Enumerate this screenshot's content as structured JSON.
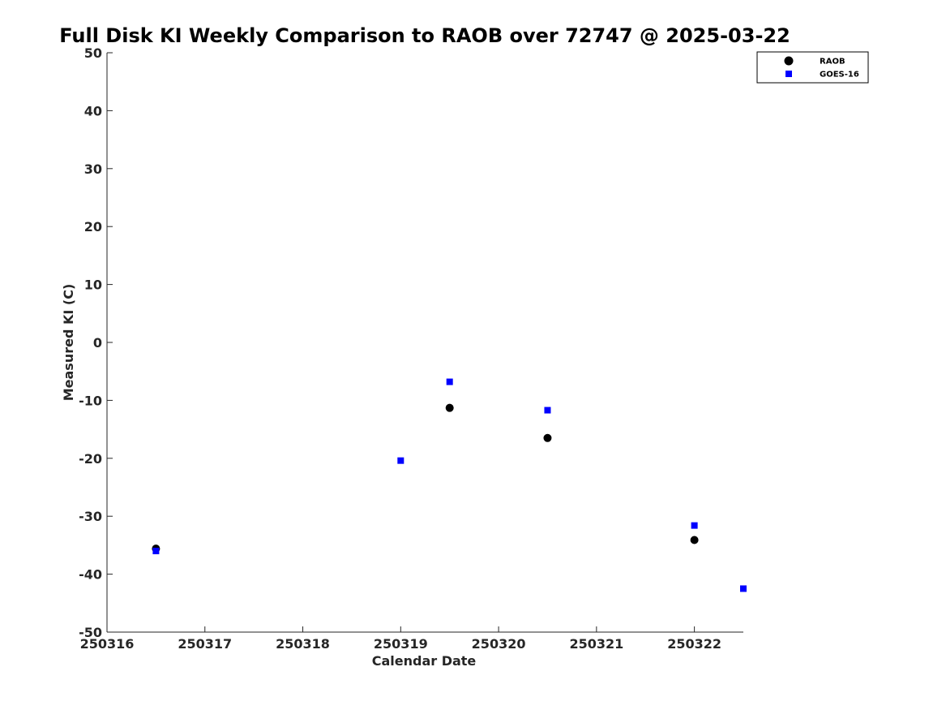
{
  "chart_data": {
    "type": "scatter",
    "title": "Full Disk KI Weekly Comparison to RAOB over 72747 @ 2025-03-22",
    "xlabel": "Calendar Date",
    "ylabel": "Measured KI (C)",
    "xlim": [
      250316,
      250322.5
    ],
    "ylim": [
      -50,
      50
    ],
    "x_ticks": [
      250316,
      250317,
      250318,
      250319,
      250320,
      250321,
      250322
    ],
    "x_tick_labels": [
      "250316",
      "250317",
      "250318",
      "250319",
      "250320",
      "250321",
      "250322"
    ],
    "y_ticks": [
      50,
      40,
      30,
      20,
      10,
      0,
      -10,
      -20,
      -30,
      -40,
      -50
    ],
    "y_tick_labels": [
      "50",
      "40",
      "30",
      "20",
      "10",
      "0",
      "-10",
      "-20",
      "-30",
      "-40",
      "-50"
    ],
    "grid": false,
    "legend_position": "top-right",
    "series": [
      {
        "name": "RAOB",
        "marker": "circle",
        "color": "#000000",
        "points": [
          {
            "x": 250316.5,
            "y": -35.6
          },
          {
            "x": 250319.5,
            "y": -11.3
          },
          {
            "x": 250320.5,
            "y": -16.5
          },
          {
            "x": 250322.0,
            "y": -34.1
          }
        ]
      },
      {
        "name": "GOES-16",
        "marker": "square",
        "color": "#0000ff",
        "points": [
          {
            "x": 250316.5,
            "y": -36.0
          },
          {
            "x": 250319.0,
            "y": -20.4
          },
          {
            "x": 250319.5,
            "y": -6.8
          },
          {
            "x": 250320.5,
            "y": -11.7
          },
          {
            "x": 250322.0,
            "y": -31.6
          },
          {
            "x": 250322.5,
            "y": -42.5
          }
        ]
      }
    ]
  }
}
